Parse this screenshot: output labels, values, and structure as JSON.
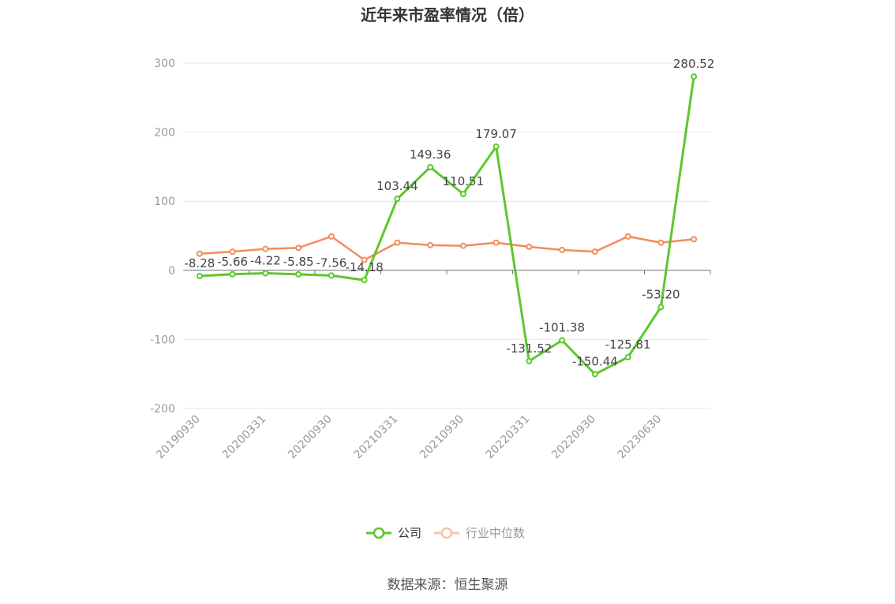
{
  "chart_data": {
    "type": "line",
    "title": "近年来市盈率情况（倍）",
    "source": "数据来源：恒生聚源",
    "tick_labels": [
      "20190930",
      "20200331",
      "20200930",
      "20210331",
      "20210930",
      "20220331",
      "20220930",
      "20230630"
    ],
    "ylim": [
      -200,
      300
    ],
    "yticks": [
      -200,
      -100,
      0,
      100,
      200,
      300
    ],
    "series": [
      {
        "name": "公司",
        "color": "#5cc82d",
        "values": [
          -8.28,
          -5.66,
          -4.22,
          -5.85,
          -7.56,
          -14.18,
          103.44,
          149.36,
          110.51,
          179.07,
          -131.52,
          -101.38,
          -150.44,
          -125.81,
          -53.2,
          280.52
        ],
        "labels": [
          "-8.28",
          "-5.66",
          "-4.22",
          "-5.85",
          "-7.56",
          "-14.18",
          "103.44",
          "149.36",
          "110.51",
          "179.07",
          "-131.52",
          "-101.38",
          "-150.44",
          "-125.81",
          "-53.20",
          "280.52"
        ]
      },
      {
        "name": "行业中位数",
        "color": "#f28c5c",
        "values": [
          24.0,
          27.0,
          31.0,
          32.5,
          49.0,
          15.0,
          40.0,
          36.5,
          35.5,
          40.0,
          34.0,
          29.5,
          27.0,
          49.0,
          40.0,
          45.0
        ]
      }
    ]
  }
}
